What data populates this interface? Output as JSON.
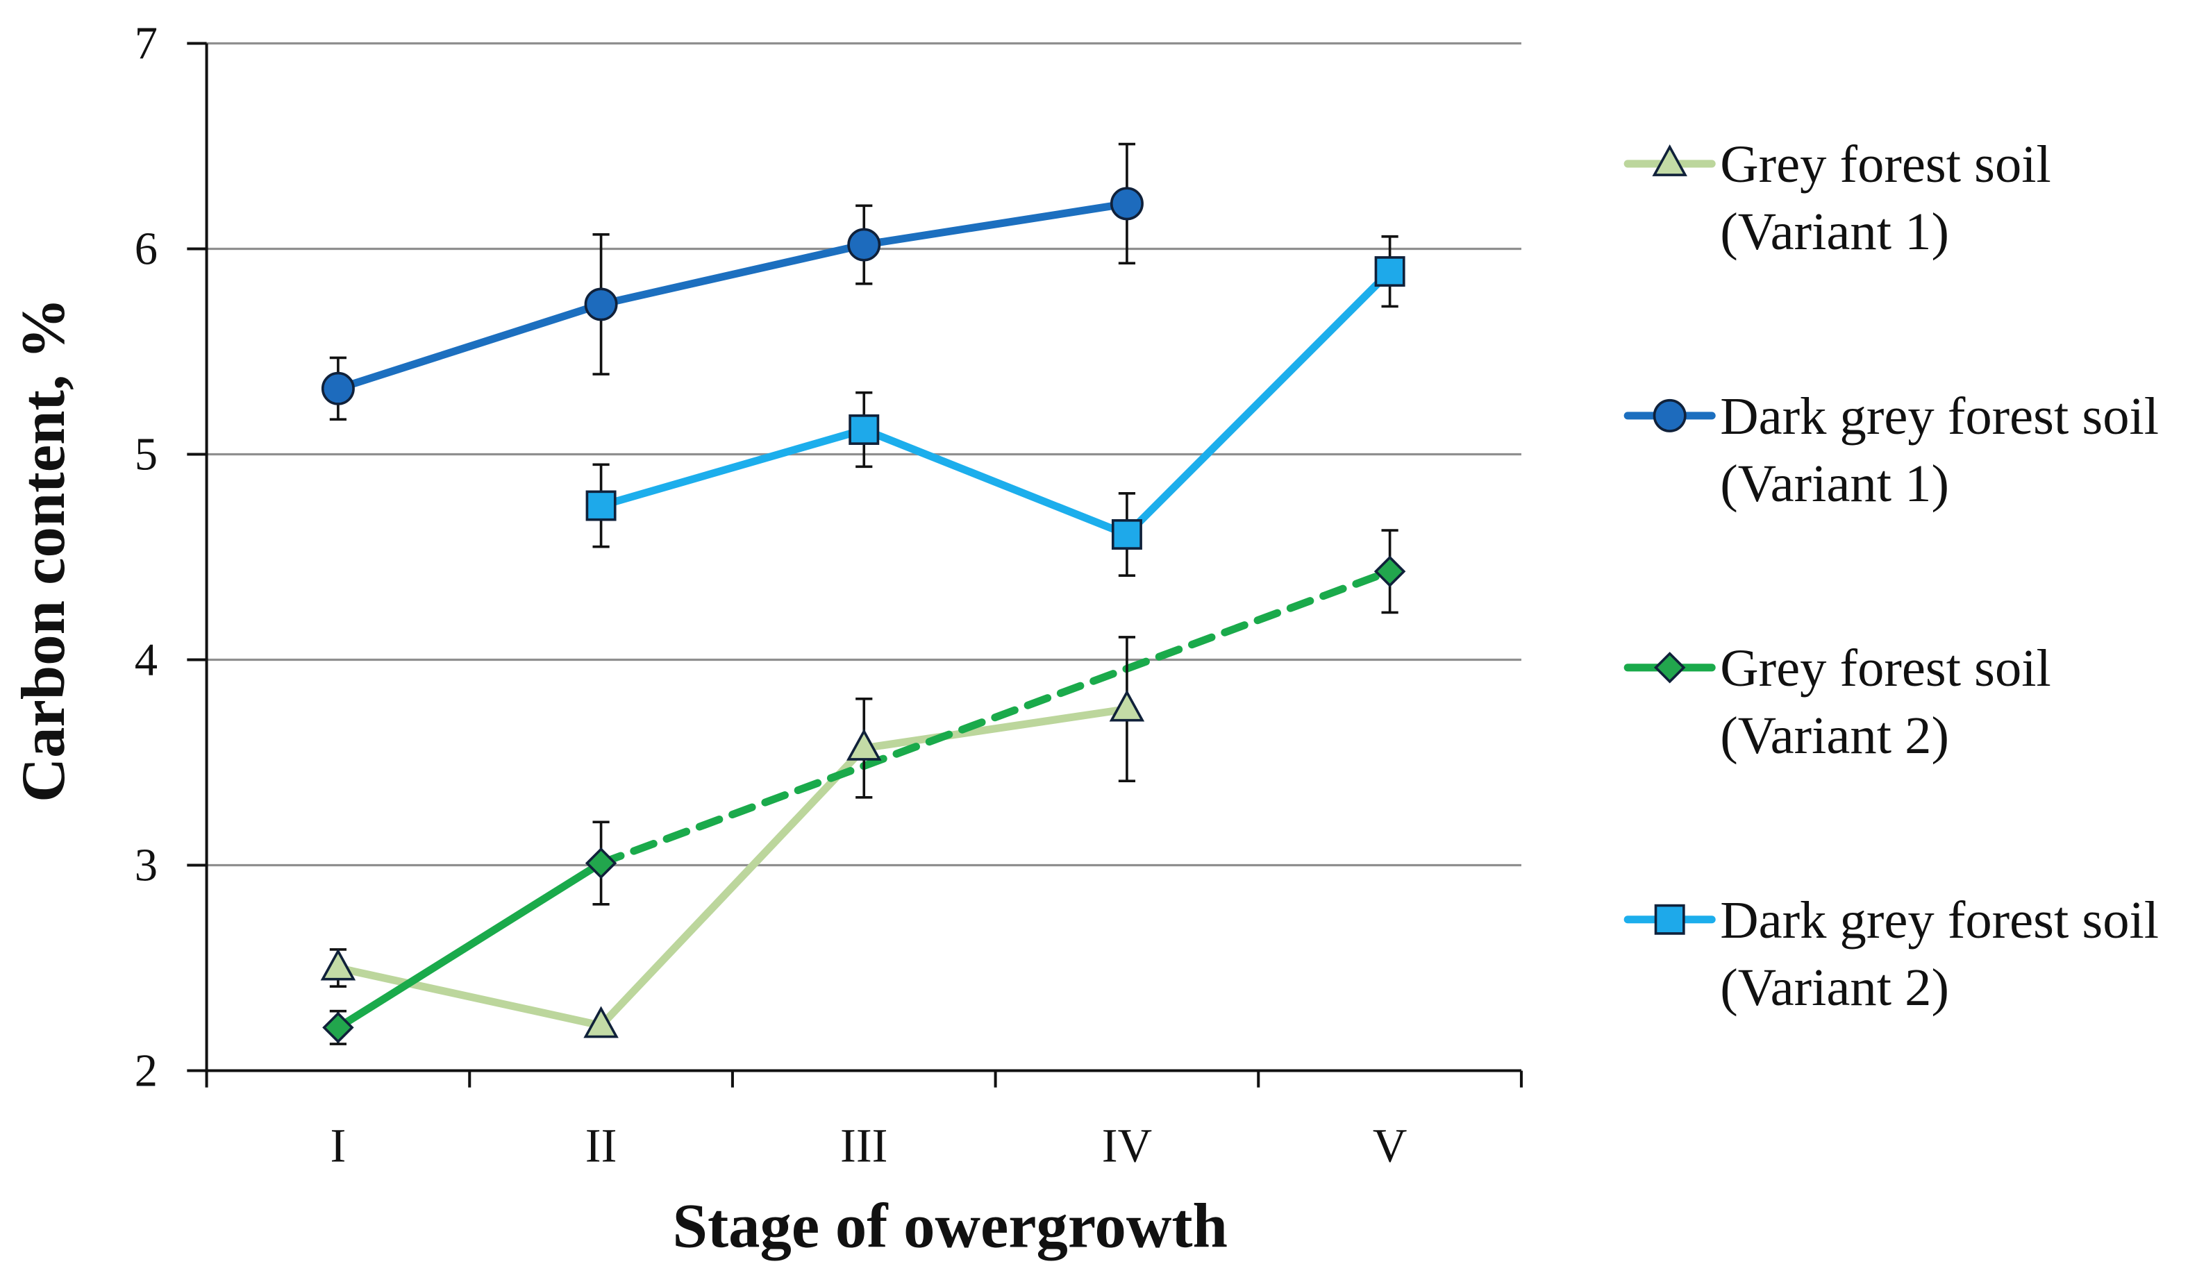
{
  "chart_data": {
    "type": "line",
    "xlabel": "Stage of owergrowth",
    "ylabel": "Carbon content, %",
    "categories": [
      "I",
      "II",
      "III",
      "IV",
      "V"
    ],
    "ylim": [
      2,
      7
    ],
    "yticks": [
      2,
      3,
      4,
      5,
      6,
      7
    ],
    "grid": true,
    "legend": "right",
    "series": [
      {
        "name": "Grey forest soil",
        "variant": "(Variant 1)",
        "marker": "triangle",
        "color": "#bcd69c",
        "marker_color": "#c3dba6",
        "values": [
          2.5,
          2.22,
          3.57,
          3.76,
          null
        ],
        "error": [
          0.09,
          null,
          0.24,
          0.35,
          null
        ]
      },
      {
        "name": "Dark grey forest soil",
        "variant": "(Variant 1)",
        "marker": "circle",
        "color": "#1c6fbf",
        "marker_color": "#1d6bbd",
        "values": [
          5.32,
          5.73,
          6.02,
          6.22,
          null
        ],
        "error": [
          0.15,
          0.34,
          0.19,
          0.29,
          null
        ]
      },
      {
        "name": "Grey forest soil",
        "variant": "(Variant 2)",
        "marker": "diamond",
        "color": "#1aaa4b",
        "marker_color": "#22a64d",
        "values": [
          2.21,
          3.01,
          null,
          null,
          4.43
        ],
        "error": [
          0.08,
          0.2,
          null,
          null,
          0.2
        ],
        "segments": [
          {
            "from": 0,
            "to": 1,
            "style": "solid"
          },
          {
            "from": 1,
            "to": 4,
            "style": "dashed"
          }
        ]
      },
      {
        "name": "Dark grey forest soil",
        "variant": "(Variant 2)",
        "marker": "square",
        "color": "#1caeec",
        "marker_color": "#1ea9ea",
        "values": [
          null,
          4.75,
          5.12,
          4.61,
          5.89
        ],
        "error": [
          null,
          0.2,
          0.18,
          0.2,
          0.17
        ]
      }
    ]
  }
}
